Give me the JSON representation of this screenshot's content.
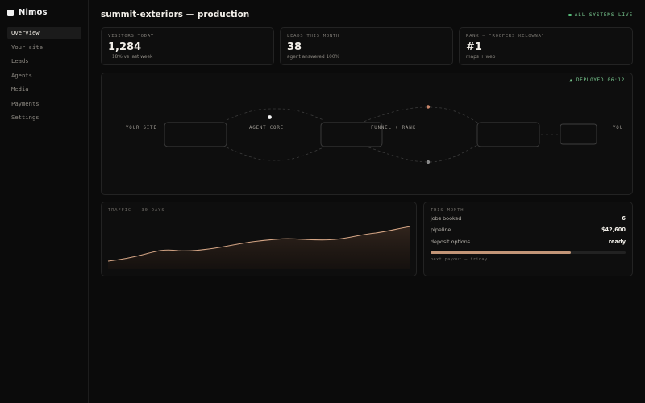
{
  "app": {
    "name": "Nimos"
  },
  "sidebar": {
    "items": [
      {
        "label": "Overview",
        "active": true
      },
      {
        "label": "Your site",
        "active": false
      },
      {
        "label": "Leads",
        "active": false
      },
      {
        "label": "Agents",
        "active": false
      },
      {
        "label": "Media",
        "active": false
      },
      {
        "label": "Payments",
        "active": false
      },
      {
        "label": "Settings",
        "active": false
      }
    ]
  },
  "header": {
    "title": "summit-exteriors — production",
    "status": "ALL SYSTEMS LIVE"
  },
  "stats": [
    {
      "label": "VISITORS TODAY",
      "value": "1,284",
      "sub": "+18% vs last week"
    },
    {
      "label": "LEADS THIS MONTH",
      "value": "38",
      "sub": "agent answered 100%"
    },
    {
      "label": "RANK — \"ROOFERS KELOWNA\"",
      "value": "#1",
      "sub": "maps + web"
    }
  ],
  "pipeline_diagram": {
    "deployed": "▲ DEPLOYED 06:12",
    "labels": {
      "your_site": "YOUR SITE",
      "agent_core": "AGENT CORE",
      "funnel_rank": "FUNNEL + RANK",
      "you": "YOU"
    }
  },
  "traffic": {
    "label": "TRAFFIC — 30 DAYS"
  },
  "this_month": {
    "label": "THIS MONTH",
    "rows": [
      {
        "key": "jobs booked",
        "value": "6"
      },
      {
        "key": "pipeline",
        "value": "$42,600"
      },
      {
        "key": "deposit options",
        "value": "ready"
      }
    ],
    "progress": 0.72,
    "payout": "next payout — friday"
  },
  "colors": {
    "accent": "#c29577",
    "status_green": "#57c07b",
    "background": "#0b0b0b",
    "card": "#0e0e0e"
  },
  "icons": {
    "brand": "square-logo-icon",
    "status": "status-dot-icon"
  }
}
